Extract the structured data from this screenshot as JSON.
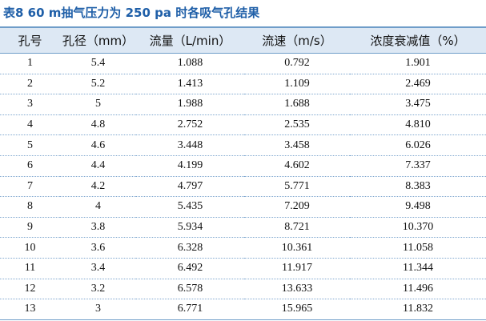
{
  "header": {
    "title": "表8 60 m抽气压力为 250 pa 时各吸气孔结果"
  },
  "table": {
    "columns": [
      "孔号",
      "孔径（mm）",
      "流量（L/min）",
      "流速（m/s）",
      "浓度衰减值（%）"
    ],
    "rows": [
      [
        "1",
        "5.4",
        "1.088",
        "0.792",
        "1.901"
      ],
      [
        "2",
        "5.2",
        "1.413",
        "1.109",
        "2.469"
      ],
      [
        "3",
        "5",
        "1.988",
        "1.688",
        "3.475"
      ],
      [
        "4",
        "4.8",
        "2.752",
        "2.535",
        "4.810"
      ],
      [
        "5",
        "4.6",
        "3.448",
        "3.458",
        "6.026"
      ],
      [
        "6",
        "4.4",
        "4.199",
        "4.602",
        "7.337"
      ],
      [
        "7",
        "4.2",
        "4.797",
        "5.771",
        "8.383"
      ],
      [
        "8",
        "4",
        "5.435",
        "7.209",
        "9.498"
      ],
      [
        "9",
        "3.8",
        "5.934",
        "8.721",
        "10.370"
      ],
      [
        "10",
        "3.6",
        "6.328",
        "10.361",
        "11.058"
      ],
      [
        "11",
        "3.4",
        "6.492",
        "11.917",
        "11.344"
      ],
      [
        "12",
        "3.2",
        "6.578",
        "13.633",
        "11.496"
      ],
      [
        "13",
        "3",
        "6.771",
        "15.965",
        "11.832"
      ]
    ]
  }
}
